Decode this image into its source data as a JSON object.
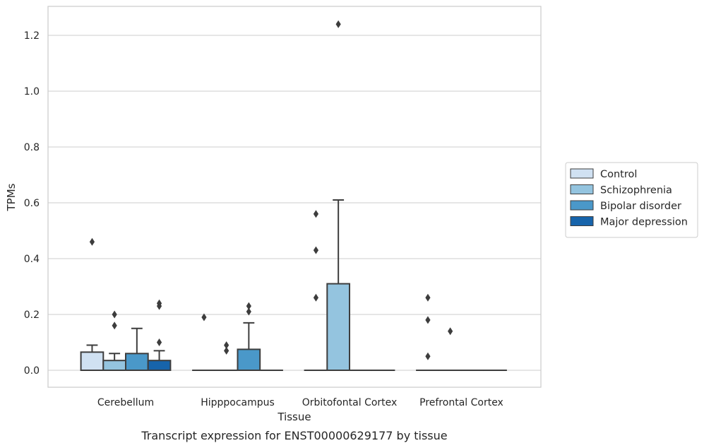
{
  "chart_data": {
    "type": "box",
    "caption": "Transcript expression for ENST00000629177 by tissue",
    "xlabel": "Tissue",
    "ylabel": "TPMs",
    "ylim": [
      -0.06,
      1.3
    ],
    "yticks": [
      0.0,
      0.2,
      0.4,
      0.6,
      0.8,
      1.0,
      1.2
    ],
    "ytick_labels": [
      "0.0",
      "0.2",
      "0.4",
      "0.6",
      "0.8",
      "1.0",
      "1.2"
    ],
    "grid": "horizontal",
    "legend_position": "right",
    "categories": [
      "Cerebellum",
      "Hipppocampus",
      "Orbitofontal Cortex",
      "Prefrontal Cortex"
    ],
    "series": [
      {
        "name": "Control",
        "color": "#d0e1f2",
        "boxes": [
          {
            "q1": 0.0,
            "median": 0.0,
            "q3": 0.065,
            "whisker_low": 0.0,
            "whisker_high": 0.09,
            "outliers": [
              0.46
            ]
          },
          {
            "q1": 0.0,
            "median": 0.0,
            "q3": 0.0,
            "whisker_low": 0.0,
            "whisker_high": 0.0,
            "outliers": [
              0.19
            ]
          },
          {
            "q1": 0.0,
            "median": 0.0,
            "q3": 0.0,
            "whisker_low": 0.0,
            "whisker_high": 0.0,
            "outliers": [
              0.56,
              0.43,
              0.26
            ]
          },
          {
            "q1": 0.0,
            "median": 0.0,
            "q3": 0.0,
            "whisker_low": 0.0,
            "whisker_high": 0.0,
            "outliers": [
              0.26,
              0.18,
              0.05
            ]
          }
        ]
      },
      {
        "name": "Schizophrenia",
        "color": "#94c4df",
        "boxes": [
          {
            "q1": 0.0,
            "median": 0.0,
            "q3": 0.035,
            "whisker_low": 0.0,
            "whisker_high": 0.06,
            "outliers": [
              0.2,
              0.16
            ]
          },
          {
            "q1": 0.0,
            "median": 0.0,
            "q3": 0.0,
            "whisker_low": 0.0,
            "whisker_high": 0.0,
            "outliers": [
              0.09,
              0.07
            ]
          },
          {
            "q1": 0.0,
            "median": 0.0,
            "q3": 0.31,
            "whisker_low": 0.0,
            "whisker_high": 0.61,
            "outliers": [
              1.24
            ]
          },
          {
            "q1": 0.0,
            "median": 0.0,
            "q3": 0.0,
            "whisker_low": 0.0,
            "whisker_high": 0.0,
            "outliers": [
              0.14
            ]
          }
        ]
      },
      {
        "name": "Bipolar disorder",
        "color": "#4a98c9",
        "boxes": [
          {
            "q1": 0.0,
            "median": 0.0,
            "q3": 0.06,
            "whisker_low": 0.0,
            "whisker_high": 0.15,
            "outliers": []
          },
          {
            "q1": 0.0,
            "median": 0.0,
            "q3": 0.075,
            "whisker_low": 0.0,
            "whisker_high": 0.17,
            "outliers": [
              0.23,
              0.21
            ]
          },
          {
            "q1": 0.0,
            "median": 0.0,
            "q3": 0.0,
            "whisker_low": 0.0,
            "whisker_high": 0.0,
            "outliers": []
          },
          {
            "q1": 0.0,
            "median": 0.0,
            "q3": 0.0,
            "whisker_low": 0.0,
            "whisker_high": 0.0,
            "outliers": []
          }
        ]
      },
      {
        "name": "Major depression",
        "color": "#1764ab",
        "boxes": [
          {
            "q1": 0.0,
            "median": 0.0,
            "q3": 0.035,
            "whisker_low": 0.0,
            "whisker_high": 0.07,
            "outliers": [
              0.24,
              0.23,
              0.1
            ]
          },
          {
            "q1": 0.0,
            "median": 0.0,
            "q3": 0.0,
            "whisker_low": 0.0,
            "whisker_high": 0.0,
            "outliers": []
          },
          {
            "q1": 0.0,
            "median": 0.0,
            "q3": 0.0,
            "whisker_low": 0.0,
            "whisker_high": 0.0,
            "outliers": []
          },
          {
            "q1": 0.0,
            "median": 0.0,
            "q3": 0.0,
            "whisker_low": 0.0,
            "whisker_high": 0.0,
            "outliers": []
          }
        ]
      }
    ]
  }
}
